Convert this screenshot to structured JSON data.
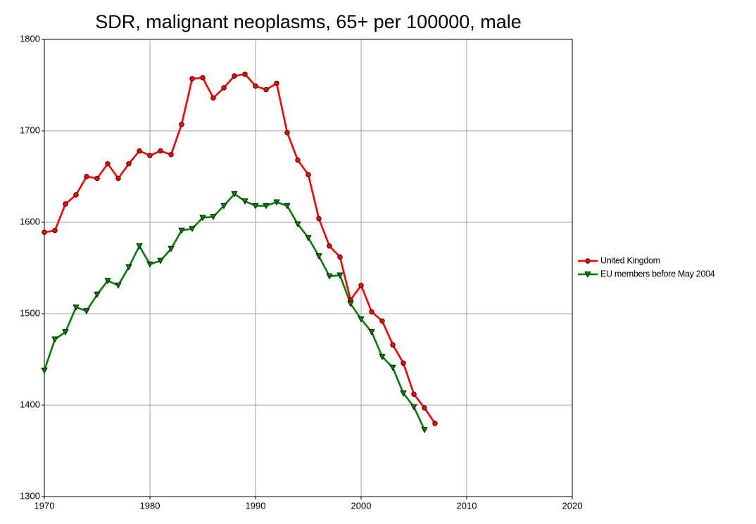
{
  "chart_data": {
    "type": "line",
    "title": "SDR, malignant neoplasms, 65+ per 100000, male",
    "x": [
      1970,
      1971,
      1972,
      1973,
      1974,
      1975,
      1976,
      1977,
      1978,
      1979,
      1980,
      1981,
      1982,
      1983,
      1984,
      1985,
      1986,
      1987,
      1988,
      1989,
      1990,
      1991,
      1992,
      1993,
      1994,
      1995,
      1996,
      1997,
      1998,
      1999,
      2000,
      2001,
      2002,
      2003,
      2004,
      2005,
      2006,
      2007
    ],
    "series": [
      {
        "name": "United Kingdom",
        "color": "#ff0000",
        "marker": "circle",
        "values": [
          1589,
          1591,
          1620,
          1630,
          1650,
          1648,
          1664,
          1648,
          1664,
          1678,
          1673,
          1678,
          1674,
          1707,
          1757,
          1758,
          1736,
          1747,
          1760,
          1762,
          1749,
          1745,
          1752,
          1698,
          1668,
          1652,
          1604,
          1574,
          1562,
          1515,
          1531,
          1502,
          1492,
          1466,
          1446,
          1412,
          1397,
          1380
        ]
      },
      {
        "name": "EU members before May 2004",
        "color": "#008000",
        "marker": "triangle-down",
        "values": [
          1438,
          1472,
          1480,
          1507,
          1503,
          1521,
          1536,
          1531,
          1551,
          1574,
          1554,
          1558,
          1571,
          1591,
          1593,
          1605,
          1606,
          1618,
          1631,
          1623,
          1618,
          1618,
          1622,
          1618,
          1598,
          1583,
          1563,
          1541,
          1542,
          1511,
          1494,
          1480,
          1453,
          1441,
          1413,
          1398,
          1373,
          null
        ]
      }
    ],
    "xlim": [
      1970,
      2020
    ],
    "xticks": [
      1970,
      1980,
      1990,
      2000,
      2010,
      2020
    ],
    "ylim": [
      1300,
      1800
    ],
    "yticks": [
      1300,
      1400,
      1500,
      1600,
      1700,
      1800
    ],
    "grid": true,
    "legend": "right"
  }
}
